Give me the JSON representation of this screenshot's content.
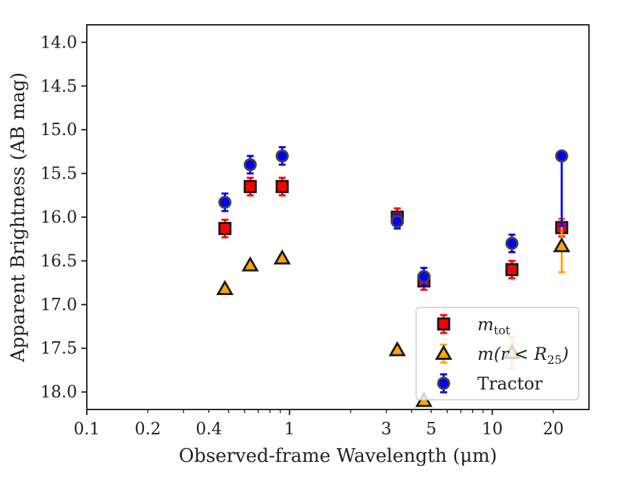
{
  "chart_data": {
    "type": "scatter",
    "xlabel": "Observed-frame Wavelength (μm)",
    "ylabel": "Apparent Brightness (AB mag)",
    "xscale": "log",
    "xlim": [
      0.1,
      30
    ],
    "ylim": [
      18.2,
      13.8
    ],
    "y_inverted": true,
    "xticks": [
      0.1,
      0.2,
      0.4,
      1,
      3,
      5,
      10,
      20
    ],
    "xtick_labels": [
      "0.1",
      "0.2",
      "0.4",
      "1",
      "3",
      "5",
      "10",
      "20"
    ],
    "yticks": [
      14.0,
      14.5,
      15.0,
      15.5,
      16.0,
      16.5,
      17.0,
      17.5,
      18.0
    ],
    "ytick_labels": [
      "14.0",
      "14.5",
      "15.0",
      "15.5",
      "16.0",
      "16.5",
      "17.0",
      "17.5",
      "18.0"
    ],
    "grid": false,
    "legend_position": "lower-right",
    "series": [
      {
        "name": "m_tot",
        "legend_main": "m",
        "legend_sub": "tot",
        "marker": "square",
        "color": "#ff0000",
        "x": [
          0.48,
          0.64,
          0.92,
          3.4,
          4.6,
          12.5,
          22
        ],
        "y": [
          16.13,
          15.65,
          15.65,
          16.0,
          16.73,
          16.6,
          16.12
        ],
        "yerr": [
          0.1,
          0.1,
          0.1,
          0.1,
          0.1,
          0.1,
          0.1
        ]
      },
      {
        "name": "m(r < R_25)",
        "legend_main": "m(r < R",
        "legend_sub": "25",
        "legend_tail": ")",
        "marker": "triangle",
        "color": "#ffa500",
        "x": [
          0.48,
          0.64,
          0.92,
          3.4,
          4.6,
          12.5,
          22
        ],
        "y": [
          16.82,
          16.55,
          16.47,
          17.52,
          18.1,
          17.55,
          16.33
        ],
        "yerr": [
          0,
          0,
          0,
          0,
          0,
          0.18,
          0.3
        ]
      },
      {
        "name": "Tractor",
        "marker": "circle",
        "color": "#0000ff",
        "x": [
          0.48,
          0.64,
          0.92,
          3.4,
          4.6,
          12.5,
          22
        ],
        "y": [
          15.83,
          15.4,
          15.3,
          16.05,
          16.68,
          16.3,
          15.3
        ],
        "yerr": [
          0.1,
          0.1,
          0.1,
          0.08,
          0.1,
          0.1,
          [
            0.0,
            0.8
          ]
        ]
      }
    ]
  },
  "colors": {
    "axis": "#222222",
    "marker_edge": "#1a1a1a",
    "legend_border": "#cccccc"
  }
}
